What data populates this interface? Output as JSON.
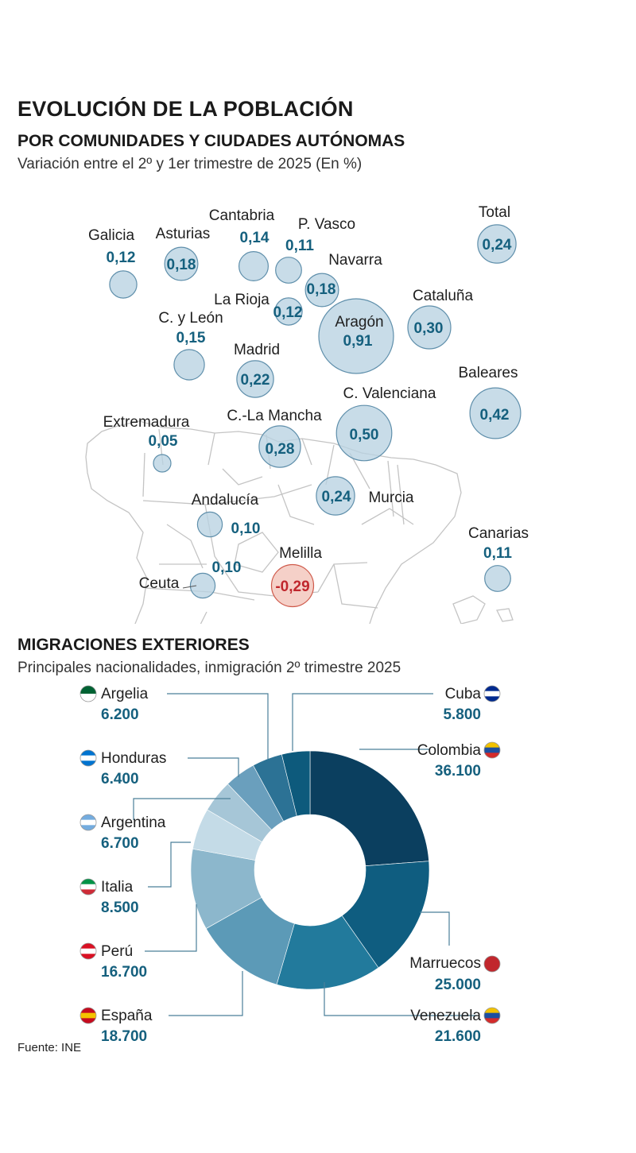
{
  "header": {
    "title": "EVOLUCIÓN DE LA POBLACIÓN",
    "subtitle": "POR COMUNIDADES Y CIUDADES AUTÓNOMAS",
    "description": "Variación entre el 2º y 1er trimestre de 2025 (En %)"
  },
  "colors": {
    "bubble_positive": "#b9d2e1",
    "bubble_negative": "#f5d0c8",
    "value_text": "#15607e",
    "negative_text": "#c0272d"
  },
  "chart_data": [
    {
      "type": "bubble-map",
      "title": "EVOLUCIÓN DE LA POBLACIÓN",
      "subtitle": "Variación entre el 2º y 1er trimestre de 2025 (En %)",
      "regions": [
        {
          "name": "Galicia",
          "value": 0.12,
          "label": "0,12"
        },
        {
          "name": "Asturias",
          "value": 0.18,
          "label": "0,18"
        },
        {
          "name": "Cantabria",
          "value": 0.14,
          "label": "0,14"
        },
        {
          "name": "P. Vasco",
          "value": 0.11,
          "label": "0,11"
        },
        {
          "name": "Navarra",
          "value": 0.18,
          "label": "0,18"
        },
        {
          "name": "La Rioja",
          "value": 0.12,
          "label": "0,12"
        },
        {
          "name": "Aragón",
          "value": 0.91,
          "label": "0,91"
        },
        {
          "name": "Cataluña",
          "value": 0.3,
          "label": "0,30"
        },
        {
          "name": "C. y León",
          "value": 0.15,
          "label": "0,15"
        },
        {
          "name": "Madrid",
          "value": 0.22,
          "label": "0,22"
        },
        {
          "name": "Baleares",
          "value": 0.42,
          "label": "0,42"
        },
        {
          "name": "C. Valenciana",
          "value": 0.5,
          "label": "0,50"
        },
        {
          "name": "Extremadura",
          "value": 0.05,
          "label": "0,05"
        },
        {
          "name": "C.-La Mancha",
          "value": 0.28,
          "label": "0,28"
        },
        {
          "name": "Murcia",
          "value": 0.24,
          "label": "0,24"
        },
        {
          "name": "Andalucía",
          "value": 0.1,
          "label": "0,10"
        },
        {
          "name": "Canarias",
          "value": 0.11,
          "label": "0,11"
        },
        {
          "name": "Ceuta",
          "value": 0.1,
          "label": "0,10"
        },
        {
          "name": "Melilla",
          "value": -0.29,
          "label": "-0,29"
        },
        {
          "name": "Total",
          "value": 0.24,
          "label": "0,24"
        }
      ]
    },
    {
      "type": "pie",
      "title": "MIGRACIONES EXTERIORES",
      "subtitle": "Principales nacionalidades, inmigración 2º trimestre 2025",
      "slices": [
        {
          "name": "Colombia",
          "value": 36100,
          "label": "36.100",
          "color": "#0b3f5f"
        },
        {
          "name": "Marruecos",
          "value": 25000,
          "label": "25.000",
          "color": "#0f5d80"
        },
        {
          "name": "Venezuela",
          "value": 21600,
          "label": "21.600",
          "color": "#227a9c"
        },
        {
          "name": "España",
          "value": 18700,
          "label": "18.700",
          "color": "#5c9ab7"
        },
        {
          "name": "Perú",
          "value": 16700,
          "label": "16.700",
          "color": "#8cb7cc"
        },
        {
          "name": "Italia",
          "value": 8500,
          "label": "8.500",
          "color": "#c4dbe7"
        },
        {
          "name": "Argentina",
          "value": 6700,
          "label": "6.700",
          "color": "#a6c6d7"
        },
        {
          "name": "Honduras",
          "value": 6400,
          "label": "6.400",
          "color": "#6a9fbd"
        },
        {
          "name": "Argelia",
          "value": 6200,
          "label": "6.200",
          "color": "#2c7295"
        },
        {
          "name": "Cuba",
          "value": 5800,
          "label": "5.800",
          "color": "#0d5a7c"
        }
      ]
    }
  ],
  "migration": {
    "title": "MIGRACIONES EXTERIORES",
    "subtitle": "Principales nacionalidades, inmigración 2º trimestre 2025"
  },
  "footer": {
    "source": "Fuente: INE"
  }
}
